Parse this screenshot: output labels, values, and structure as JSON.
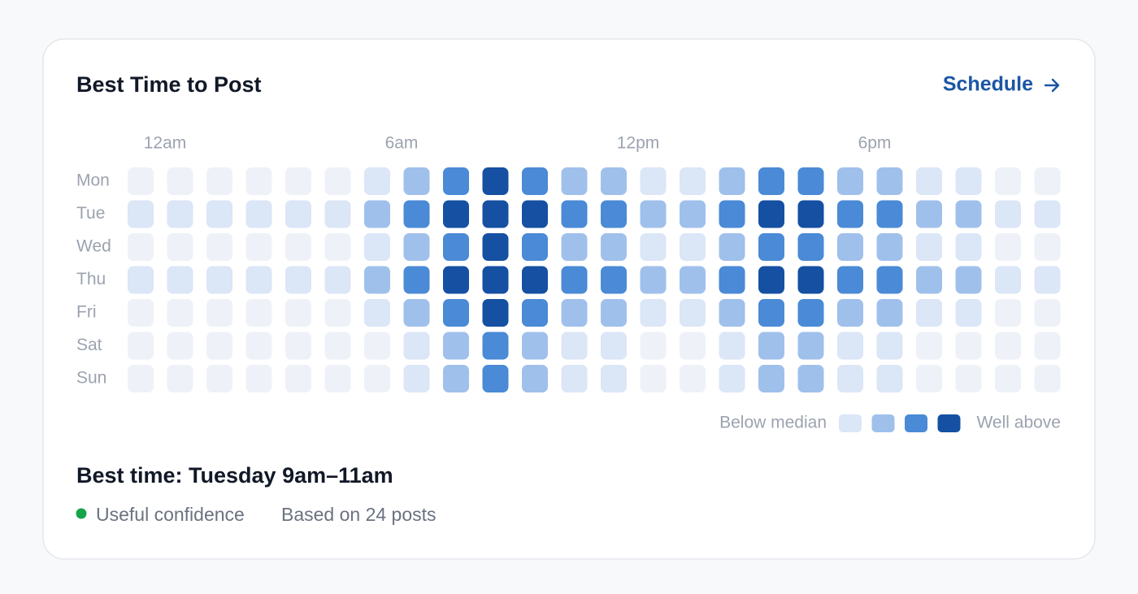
{
  "header": {
    "title": "Best Time to Post",
    "action": "Schedule"
  },
  "chart_data": {
    "type": "heatmap",
    "categories": [
      "12am",
      null,
      null,
      null,
      null,
      null,
      "6am",
      null,
      null,
      null,
      null,
      null,
      "12pm",
      null,
      null,
      null,
      null,
      null,
      "6pm",
      null,
      null,
      null,
      null,
      null
    ],
    "rows": [
      "Mon",
      "Tue",
      "Wed",
      "Thu",
      "Fri",
      "Sat",
      "Sun"
    ],
    "values": [
      [
        0,
        0,
        0,
        0,
        0,
        0,
        1,
        2,
        3,
        4,
        3,
        2,
        2,
        1,
        1,
        2,
        3,
        3,
        2,
        2,
        1,
        1,
        0,
        0
      ],
      [
        1,
        1,
        1,
        1,
        1,
        1,
        2,
        3,
        4,
        4,
        4,
        3,
        3,
        2,
        2,
        3,
        4,
        4,
        3,
        3,
        2,
        2,
        1,
        1
      ],
      [
        0,
        0,
        0,
        0,
        0,
        0,
        1,
        2,
        3,
        4,
        3,
        2,
        2,
        1,
        1,
        2,
        3,
        3,
        2,
        2,
        1,
        1,
        0,
        0
      ],
      [
        1,
        1,
        1,
        1,
        1,
        1,
        2,
        3,
        4,
        4,
        4,
        3,
        3,
        2,
        2,
        3,
        4,
        4,
        3,
        3,
        2,
        2,
        1,
        1
      ],
      [
        0,
        0,
        0,
        0,
        0,
        0,
        1,
        2,
        3,
        4,
        3,
        2,
        2,
        1,
        1,
        2,
        3,
        3,
        2,
        2,
        1,
        1,
        0,
        0
      ],
      [
        0,
        0,
        0,
        0,
        0,
        0,
        0,
        1,
        2,
        3,
        2,
        1,
        1,
        0,
        0,
        1,
        2,
        2,
        1,
        1,
        0,
        0,
        0,
        0
      ],
      [
        0,
        0,
        0,
        0,
        0,
        0,
        0,
        1,
        2,
        3,
        2,
        1,
        1,
        0,
        0,
        1,
        2,
        2,
        1,
        1,
        0,
        0,
        0,
        0
      ]
    ],
    "colors": [
      "#eef2f8",
      "#dbe6f7",
      "#a0c0ec",
      "#4a8ad6",
      "#1550a3"
    ],
    "legend": {
      "low": "Below median",
      "high": "Well above"
    }
  },
  "summary": {
    "best": "Best time: Tuesday 9am–11am",
    "confidence": "Useful confidence",
    "basis": "Based on 24 posts"
  }
}
